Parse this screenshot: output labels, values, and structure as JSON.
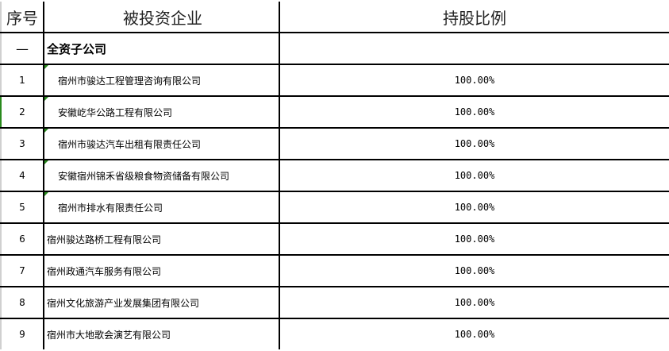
{
  "header": {
    "index": "序号",
    "company": "被投资企业",
    "ratio": "持股比例"
  },
  "section": {
    "index": "—",
    "title": "全资子公司"
  },
  "rows": [
    {
      "index": "1",
      "company": "宿州市骏达工程管理咨询有限公司",
      "ratio": "100.00%"
    },
    {
      "index": "2",
      "company": "安徽屹华公路工程有限公司",
      "ratio": "100.00%"
    },
    {
      "index": "3",
      "company": "宿州市骏达汽车出租有限责任公司",
      "ratio": "100.00%"
    },
    {
      "index": "4",
      "company": "安徽宿州锦禾省级粮食物资储备有限公司",
      "ratio": "100.00%"
    },
    {
      "index": "5",
      "company": "宿州市排水有限责任公司",
      "ratio": "100.00%"
    },
    {
      "index": "6",
      "company": "宿州骏达路桥工程有限公司",
      "ratio": "100.00%"
    },
    {
      "index": "7",
      "company": "宿州政通汽车服务有限公司",
      "ratio": "100.00%"
    },
    {
      "index": "8",
      "company": "宿州文化旅游产业发展集团有限公司",
      "ratio": "100.00%"
    },
    {
      "index": "9",
      "company": "宿州市大地歌会演艺有限公司",
      "ratio": "100.00%"
    }
  ]
}
